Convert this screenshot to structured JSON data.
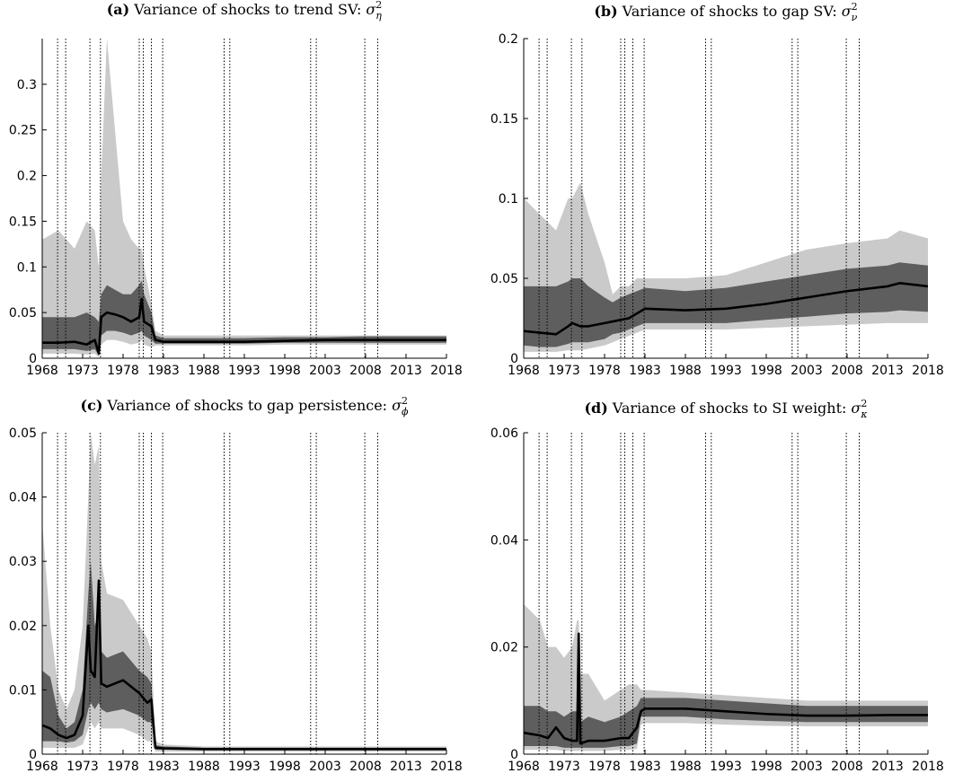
{
  "chart_data": [
    {
      "type": "band-line",
      "title_label": "(a)",
      "title": "Variance of shocks to trend SV:",
      "symbol": "σ",
      "subscript": "η",
      "superscript": "2",
      "x": [
        1968,
        1970,
        1972,
        1973.5,
        1974.5,
        1975,
        1975.3,
        1976,
        1977,
        1978,
        1979,
        1980,
        1980.3,
        1980.6,
        1981.5,
        1982,
        1983,
        1988,
        1993,
        1998,
        2003,
        2008,
        2013,
        2018
      ],
      "median": [
        0.017,
        0.017,
        0.018,
        0.015,
        0.02,
        0.005,
        0.045,
        0.05,
        0.048,
        0.045,
        0.04,
        0.045,
        0.065,
        0.04,
        0.035,
        0.02,
        0.018,
        0.018,
        0.018,
        0.019,
        0.02,
        0.02,
        0.02,
        0.02
      ],
      "inner": {
        "lower": [
          0.01,
          0.01,
          0.01,
          0.008,
          0.01,
          0.003,
          0.025,
          0.03,
          0.03,
          0.028,
          0.025,
          0.028,
          0.03,
          0.025,
          0.02,
          0.016,
          0.016,
          0.016,
          0.016,
          0.017,
          0.017,
          0.017,
          0.017,
          0.017
        ],
        "upper": [
          0.045,
          0.045,
          0.045,
          0.05,
          0.045,
          0.04,
          0.07,
          0.08,
          0.075,
          0.07,
          0.07,
          0.08,
          0.085,
          0.07,
          0.05,
          0.025,
          0.022,
          0.022,
          0.022,
          0.023,
          0.023,
          0.024,
          0.024,
          0.024
        ]
      },
      "outer": {
        "lower": [
          0.005,
          0.005,
          0.005,
          0.004,
          0.005,
          0.001,
          0.015,
          0.02,
          0.02,
          0.018,
          0.015,
          0.017,
          0.02,
          0.015,
          0.012,
          0.014,
          0.014,
          0.014,
          0.014,
          0.015,
          0.015,
          0.015,
          0.015,
          0.015
        ],
        "upper": [
          0.13,
          0.14,
          0.12,
          0.15,
          0.14,
          0.1,
          0.2,
          0.35,
          0.25,
          0.15,
          0.13,
          0.12,
          0.12,
          0.1,
          0.06,
          0.03,
          0.025,
          0.025,
          0.025,
          0.025,
          0.025,
          0.025,
          0.025,
          0.025
        ]
      },
      "vlines": [
        1969.9,
        1970.9,
        1973.9,
        1975.2,
        1980.0,
        1980.5,
        1981.5,
        1982.9,
        1990.5,
        1991.2,
        2001.2,
        2001.9,
        2007.9,
        2009.5
      ],
      "xlim": [
        1968,
        2018
      ],
      "xticks": [
        1968,
        1973,
        1978,
        1983,
        1988,
        1993,
        1998,
        2003,
        2008,
        2013,
        2018
      ],
      "ylim": [
        0,
        0.35
      ],
      "yticks": [
        0,
        0.05,
        0.1,
        0.15,
        0.2,
        0.25,
        0.3
      ],
      "colors": {
        "median": "#000000",
        "inner": "#5e5e5e",
        "outer": "#cacaca"
      }
    },
    {
      "type": "band-line",
      "title_label": "(b)",
      "title": "Variance of shocks to gap SV:",
      "symbol": "σ",
      "subscript": "ν",
      "superscript": "2",
      "x": [
        1968,
        1970,
        1972,
        1973.5,
        1974,
        1975,
        1976,
        1978,
        1979,
        1980,
        1981,
        1982,
        1983,
        1988,
        1993,
        1998,
        2003,
        2008,
        2013,
        2014.5,
        2018
      ],
      "median": [
        0.017,
        0.016,
        0.015,
        0.02,
        0.022,
        0.02,
        0.02,
        0.022,
        0.023,
        0.024,
        0.025,
        0.028,
        0.031,
        0.03,
        0.031,
        0.034,
        0.038,
        0.042,
        0.045,
        0.047,
        0.045
      ],
      "inner": {
        "lower": [
          0.008,
          0.007,
          0.007,
          0.009,
          0.01,
          0.01,
          0.01,
          0.012,
          0.015,
          0.016,
          0.018,
          0.02,
          0.022,
          0.022,
          0.022,
          0.024,
          0.026,
          0.028,
          0.029,
          0.03,
          0.029
        ],
        "upper": [
          0.045,
          0.045,
          0.045,
          0.048,
          0.05,
          0.05,
          0.045,
          0.038,
          0.035,
          0.038,
          0.04,
          0.042,
          0.044,
          0.042,
          0.044,
          0.048,
          0.052,
          0.056,
          0.058,
          0.06,
          0.058
        ]
      },
      "outer": {
        "lower": [
          0.004,
          0.004,
          0.004,
          0.005,
          0.005,
          0.005,
          0.006,
          0.008,
          0.01,
          0.012,
          0.014,
          0.016,
          0.018,
          0.018,
          0.018,
          0.019,
          0.02,
          0.021,
          0.022,
          0.022,
          0.022
        ],
        "upper": [
          0.1,
          0.09,
          0.08,
          0.1,
          0.1,
          0.11,
          0.09,
          0.06,
          0.04,
          0.045,
          0.045,
          0.05,
          0.05,
          0.05,
          0.052,
          0.06,
          0.068,
          0.072,
          0.075,
          0.08,
          0.075
        ]
      },
      "vlines": [
        1969.9,
        1970.9,
        1973.9,
        1975.2,
        1980.0,
        1980.5,
        1981.5,
        1982.9,
        1990.5,
        1991.2,
        2001.2,
        2001.9,
        2007.9,
        2009.5
      ],
      "xlim": [
        1968,
        2018
      ],
      "xticks": [
        1968,
        1973,
        1978,
        1983,
        1988,
        1993,
        1998,
        2003,
        2008,
        2013,
        2018
      ],
      "ylim": [
        0,
        0.2
      ],
      "yticks": [
        0,
        0.05,
        0.1,
        0.15,
        0.2
      ],
      "colors": {
        "median": "#000000",
        "inner": "#5e5e5e",
        "outer": "#cacaca"
      }
    },
    {
      "type": "band-line",
      "title_label": "(c)",
      "title": "Variance of shocks to gap persistence:",
      "symbol": "σ",
      "subscript": "ϕ",
      "superscript": "2",
      "x": [
        1968,
        1969,
        1970,
        1971,
        1972,
        1973,
        1973.7,
        1974,
        1974.5,
        1975,
        1975.3,
        1976,
        1978,
        1980,
        1981,
        1981.5,
        1982,
        1983,
        1988,
        1993,
        1998,
        2003,
        2008,
        2013,
        2018
      ],
      "median": [
        0.0045,
        0.004,
        0.003,
        0.0025,
        0.003,
        0.006,
        0.02,
        0.013,
        0.012,
        0.027,
        0.011,
        0.0105,
        0.0115,
        0.0095,
        0.008,
        0.0085,
        0.001,
        0.0009,
        0.0008,
        0.0008,
        0.0008,
        0.0008,
        0.0008,
        0.0008,
        0.0008
      ],
      "inner": {
        "lower": [
          0.002,
          0.002,
          0.002,
          0.0018,
          0.002,
          0.003,
          0.007,
          0.008,
          0.007,
          0.008,
          0.007,
          0.0065,
          0.007,
          0.006,
          0.005,
          0.005,
          0.0007,
          0.0007,
          0.0006,
          0.0006,
          0.0006,
          0.0006,
          0.0006,
          0.0006,
          0.0006
        ],
        "upper": [
          0.013,
          0.012,
          0.006,
          0.004,
          0.005,
          0.01,
          0.025,
          0.03,
          0.02,
          0.022,
          0.016,
          0.015,
          0.016,
          0.013,
          0.012,
          0.011,
          0.0014,
          0.0012,
          0.001,
          0.001,
          0.001,
          0.001,
          0.001,
          0.001,
          0.001
        ]
      },
      "outer": {
        "lower": [
          0.001,
          0.001,
          0.001,
          0.001,
          0.001,
          0.0015,
          0.004,
          0.005,
          0.004,
          0.005,
          0.004,
          0.004,
          0.004,
          0.003,
          0.002,
          0.002,
          0.0004,
          0.0004,
          0.0004,
          0.0004,
          0.0004,
          0.0004,
          0.0004,
          0.0004,
          0.0004
        ],
        "upper": [
          0.036,
          0.02,
          0.01,
          0.007,
          0.01,
          0.02,
          0.04,
          0.05,
          0.045,
          0.048,
          0.03,
          0.025,
          0.024,
          0.02,
          0.018,
          0.016,
          0.002,
          0.0015,
          0.0012,
          0.0012,
          0.0012,
          0.0012,
          0.0012,
          0.0012,
          0.0012
        ]
      },
      "vlines": [
        1969.9,
        1970.9,
        1973.9,
        1975.2,
        1980.0,
        1980.5,
        1981.5,
        1982.9,
        1990.5,
        1991.2,
        2001.2,
        2001.9,
        2007.9,
        2009.5
      ],
      "xlim": [
        1968,
        2018
      ],
      "xticks": [
        1968,
        1973,
        1978,
        1983,
        1988,
        1993,
        1998,
        2003,
        2008,
        2013,
        2018
      ],
      "ylim": [
        0,
        0.05
      ],
      "yticks": [
        0,
        0.01,
        0.02,
        0.03,
        0.04,
        0.05
      ],
      "colors": {
        "median": "#000000",
        "inner": "#5e5e5e",
        "outer": "#cacaca"
      }
    },
    {
      "type": "band-line",
      "title_label": "(d)",
      "title": "Variance of shocks to SI weight:",
      "symbol": "σ",
      "subscript": "κ",
      "superscript": "2",
      "x": [
        1968,
        1970,
        1971,
        1972,
        1973,
        1974,
        1974.6,
        1974.8,
        1975,
        1976,
        1978,
        1980,
        1981,
        1982,
        1982.5,
        1983,
        1988,
        1993,
        1998,
        2003,
        2008,
        2013,
        2018
      ],
      "median": [
        0.004,
        0.0035,
        0.003,
        0.005,
        0.003,
        0.0025,
        0.0025,
        0.0225,
        0.002,
        0.0025,
        0.0025,
        0.003,
        0.003,
        0.005,
        0.008,
        0.0085,
        0.0085,
        0.008,
        0.0075,
        0.0072,
        0.0072,
        0.0073,
        0.0073
      ],
      "inner": {
        "lower": [
          0.0015,
          0.0015,
          0.0015,
          0.0015,
          0.0012,
          0.0012,
          0.0012,
          0.0012,
          0.0012,
          0.0012,
          0.0012,
          0.0015,
          0.0015,
          0.002,
          0.007,
          0.007,
          0.007,
          0.0065,
          0.0062,
          0.006,
          0.006,
          0.006,
          0.006
        ],
        "upper": [
          0.009,
          0.009,
          0.008,
          0.008,
          0.007,
          0.008,
          0.008,
          0.008,
          0.006,
          0.007,
          0.006,
          0.007,
          0.008,
          0.009,
          0.0105,
          0.0105,
          0.0105,
          0.01,
          0.0095,
          0.009,
          0.009,
          0.009,
          0.009
        ]
      },
      "outer": {
        "lower": [
          0.0008,
          0.0008,
          0.0008,
          0.0008,
          0.0006,
          0.0006,
          0.0006,
          0.0006,
          0.0006,
          0.0006,
          0.0006,
          0.0008,
          0.0008,
          0.001,
          0.0055,
          0.0058,
          0.0058,
          0.0055,
          0.0053,
          0.0052,
          0.0052,
          0.0052,
          0.0052
        ],
        "upper": [
          0.028,
          0.025,
          0.02,
          0.02,
          0.018,
          0.02,
          0.025,
          0.025,
          0.015,
          0.015,
          0.01,
          0.012,
          0.013,
          0.013,
          0.012,
          0.012,
          0.0115,
          0.011,
          0.0105,
          0.01,
          0.01,
          0.01,
          0.01
        ]
      },
      "vlines": [
        1969.9,
        1970.9,
        1973.9,
        1975.2,
        1980.0,
        1980.5,
        1981.5,
        1982.9,
        1990.5,
        1991.2,
        2001.2,
        2001.9,
        2007.9,
        2009.5
      ],
      "xlim": [
        1968,
        2018
      ],
      "xticks": [
        1968,
        1973,
        1978,
        1983,
        1988,
        1993,
        1998,
        2003,
        2008,
        2013,
        2018
      ],
      "ylim": [
        0,
        0.06
      ],
      "yticks": [
        0,
        0.02,
        0.04,
        0.06
      ],
      "colors": {
        "median": "#000000",
        "inner": "#5e5e5e",
        "outer": "#cacaca"
      }
    }
  ]
}
